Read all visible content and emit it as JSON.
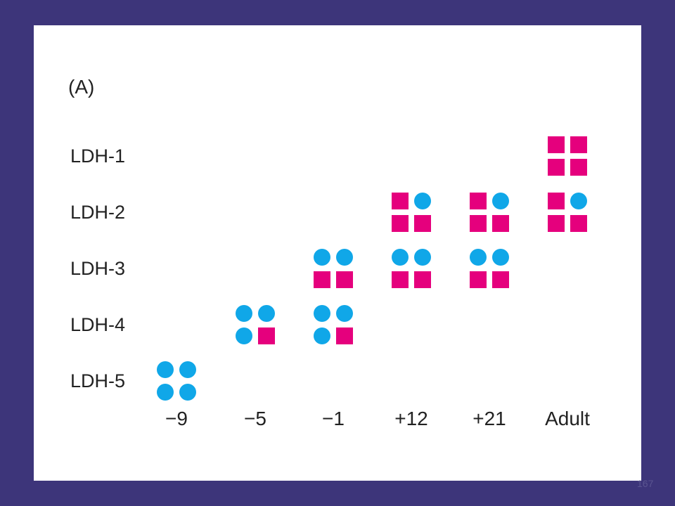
{
  "panel_label": "(A)",
  "page_number": "167",
  "rows": [
    {
      "id": "ldh1",
      "label": "LDH-1"
    },
    {
      "id": "ldh2",
      "label": "LDH-2"
    },
    {
      "id": "ldh3",
      "label": "LDH-3"
    },
    {
      "id": "ldh4",
      "label": "LDH-4"
    },
    {
      "id": "ldh5",
      "label": "LDH-5"
    }
  ],
  "columns": [
    {
      "id": "m9",
      "label": "−9"
    },
    {
      "id": "m5",
      "label": "−5"
    },
    {
      "id": "m1",
      "label": "−1"
    },
    {
      "id": "p12",
      "label": "+12"
    },
    {
      "id": "p21",
      "label": "+21"
    },
    {
      "id": "adult",
      "label": "Adult"
    }
  ],
  "colors": {
    "H_subunit": "#e5007d",
    "M_subunit": "#10a7e8",
    "background": "#3d357a"
  },
  "subunit_legend": {
    "H": "magenta square",
    "M": "blue circle"
  },
  "clusters": [
    {
      "row": 4,
      "col": 0,
      "subunits": [
        "M",
        "M",
        "M",
        "M"
      ]
    },
    {
      "row": 3,
      "col": 1,
      "subunits": [
        "M",
        "M",
        "M",
        "H"
      ]
    },
    {
      "row": 3,
      "col": 2,
      "subunits": [
        "M",
        "M",
        "M",
        "H"
      ]
    },
    {
      "row": 2,
      "col": 2,
      "subunits": [
        "M",
        "M",
        "H",
        "H"
      ]
    },
    {
      "row": 2,
      "col": 3,
      "subunits": [
        "M",
        "M",
        "H",
        "H"
      ]
    },
    {
      "row": 1,
      "col": 3,
      "subunits": [
        "H",
        "M",
        "H",
        "H"
      ]
    },
    {
      "row": 2,
      "col": 4,
      "subunits": [
        "M",
        "M",
        "H",
        "H"
      ]
    },
    {
      "row": 1,
      "col": 4,
      "subunits": [
        "H",
        "M",
        "H",
        "H"
      ]
    },
    {
      "row": 1,
      "col": 5,
      "subunits": [
        "H",
        "M",
        "H",
        "H"
      ]
    },
    {
      "row": 0,
      "col": 5,
      "subunits": [
        "H",
        "H",
        "H",
        "H"
      ]
    }
  ]
}
